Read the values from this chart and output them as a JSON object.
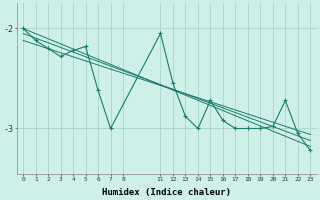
{
  "bg_color": "#cff0e8",
  "grid_color": "#b0d8cc",
  "line_color": "#1a7a6e",
  "xlabel": "Humidex (Indice chaleur)",
  "yticks": [
    -3,
    -2
  ],
  "ylim": [
    -3.45,
    -1.75
  ],
  "xlim": [
    -0.5,
    23.5
  ],
  "xticks": [
    0,
    1,
    2,
    3,
    4,
    5,
    6,
    7,
    8,
    11,
    12,
    13,
    14,
    15,
    16,
    17,
    18,
    19,
    20,
    21,
    22,
    23
  ],
  "series1": {
    "x": [
      0,
      1,
      2,
      3,
      4,
      5,
      6,
      7,
      11,
      12,
      13,
      14,
      15,
      16,
      17,
      18,
      19,
      20,
      21,
      22,
      23
    ],
    "y": [
      -2.0,
      -2.12,
      -2.2,
      -2.28,
      -2.22,
      -2.18,
      -2.62,
      -3.0,
      -2.05,
      -2.55,
      -2.88,
      -3.0,
      -2.72,
      -2.92,
      -3.0,
      -3.0,
      -3.0,
      -2.98,
      -2.72,
      -3.05,
      -3.22
    ]
  },
  "line1": {
    "x": [
      0,
      23
    ],
    "y": [
      -2.0,
      -3.18
    ]
  },
  "line2": {
    "x": [
      0,
      23
    ],
    "y": [
      -2.05,
      -3.12
    ]
  },
  "line3": {
    "x": [
      0,
      23
    ],
    "y": [
      -2.12,
      -3.06
    ]
  }
}
